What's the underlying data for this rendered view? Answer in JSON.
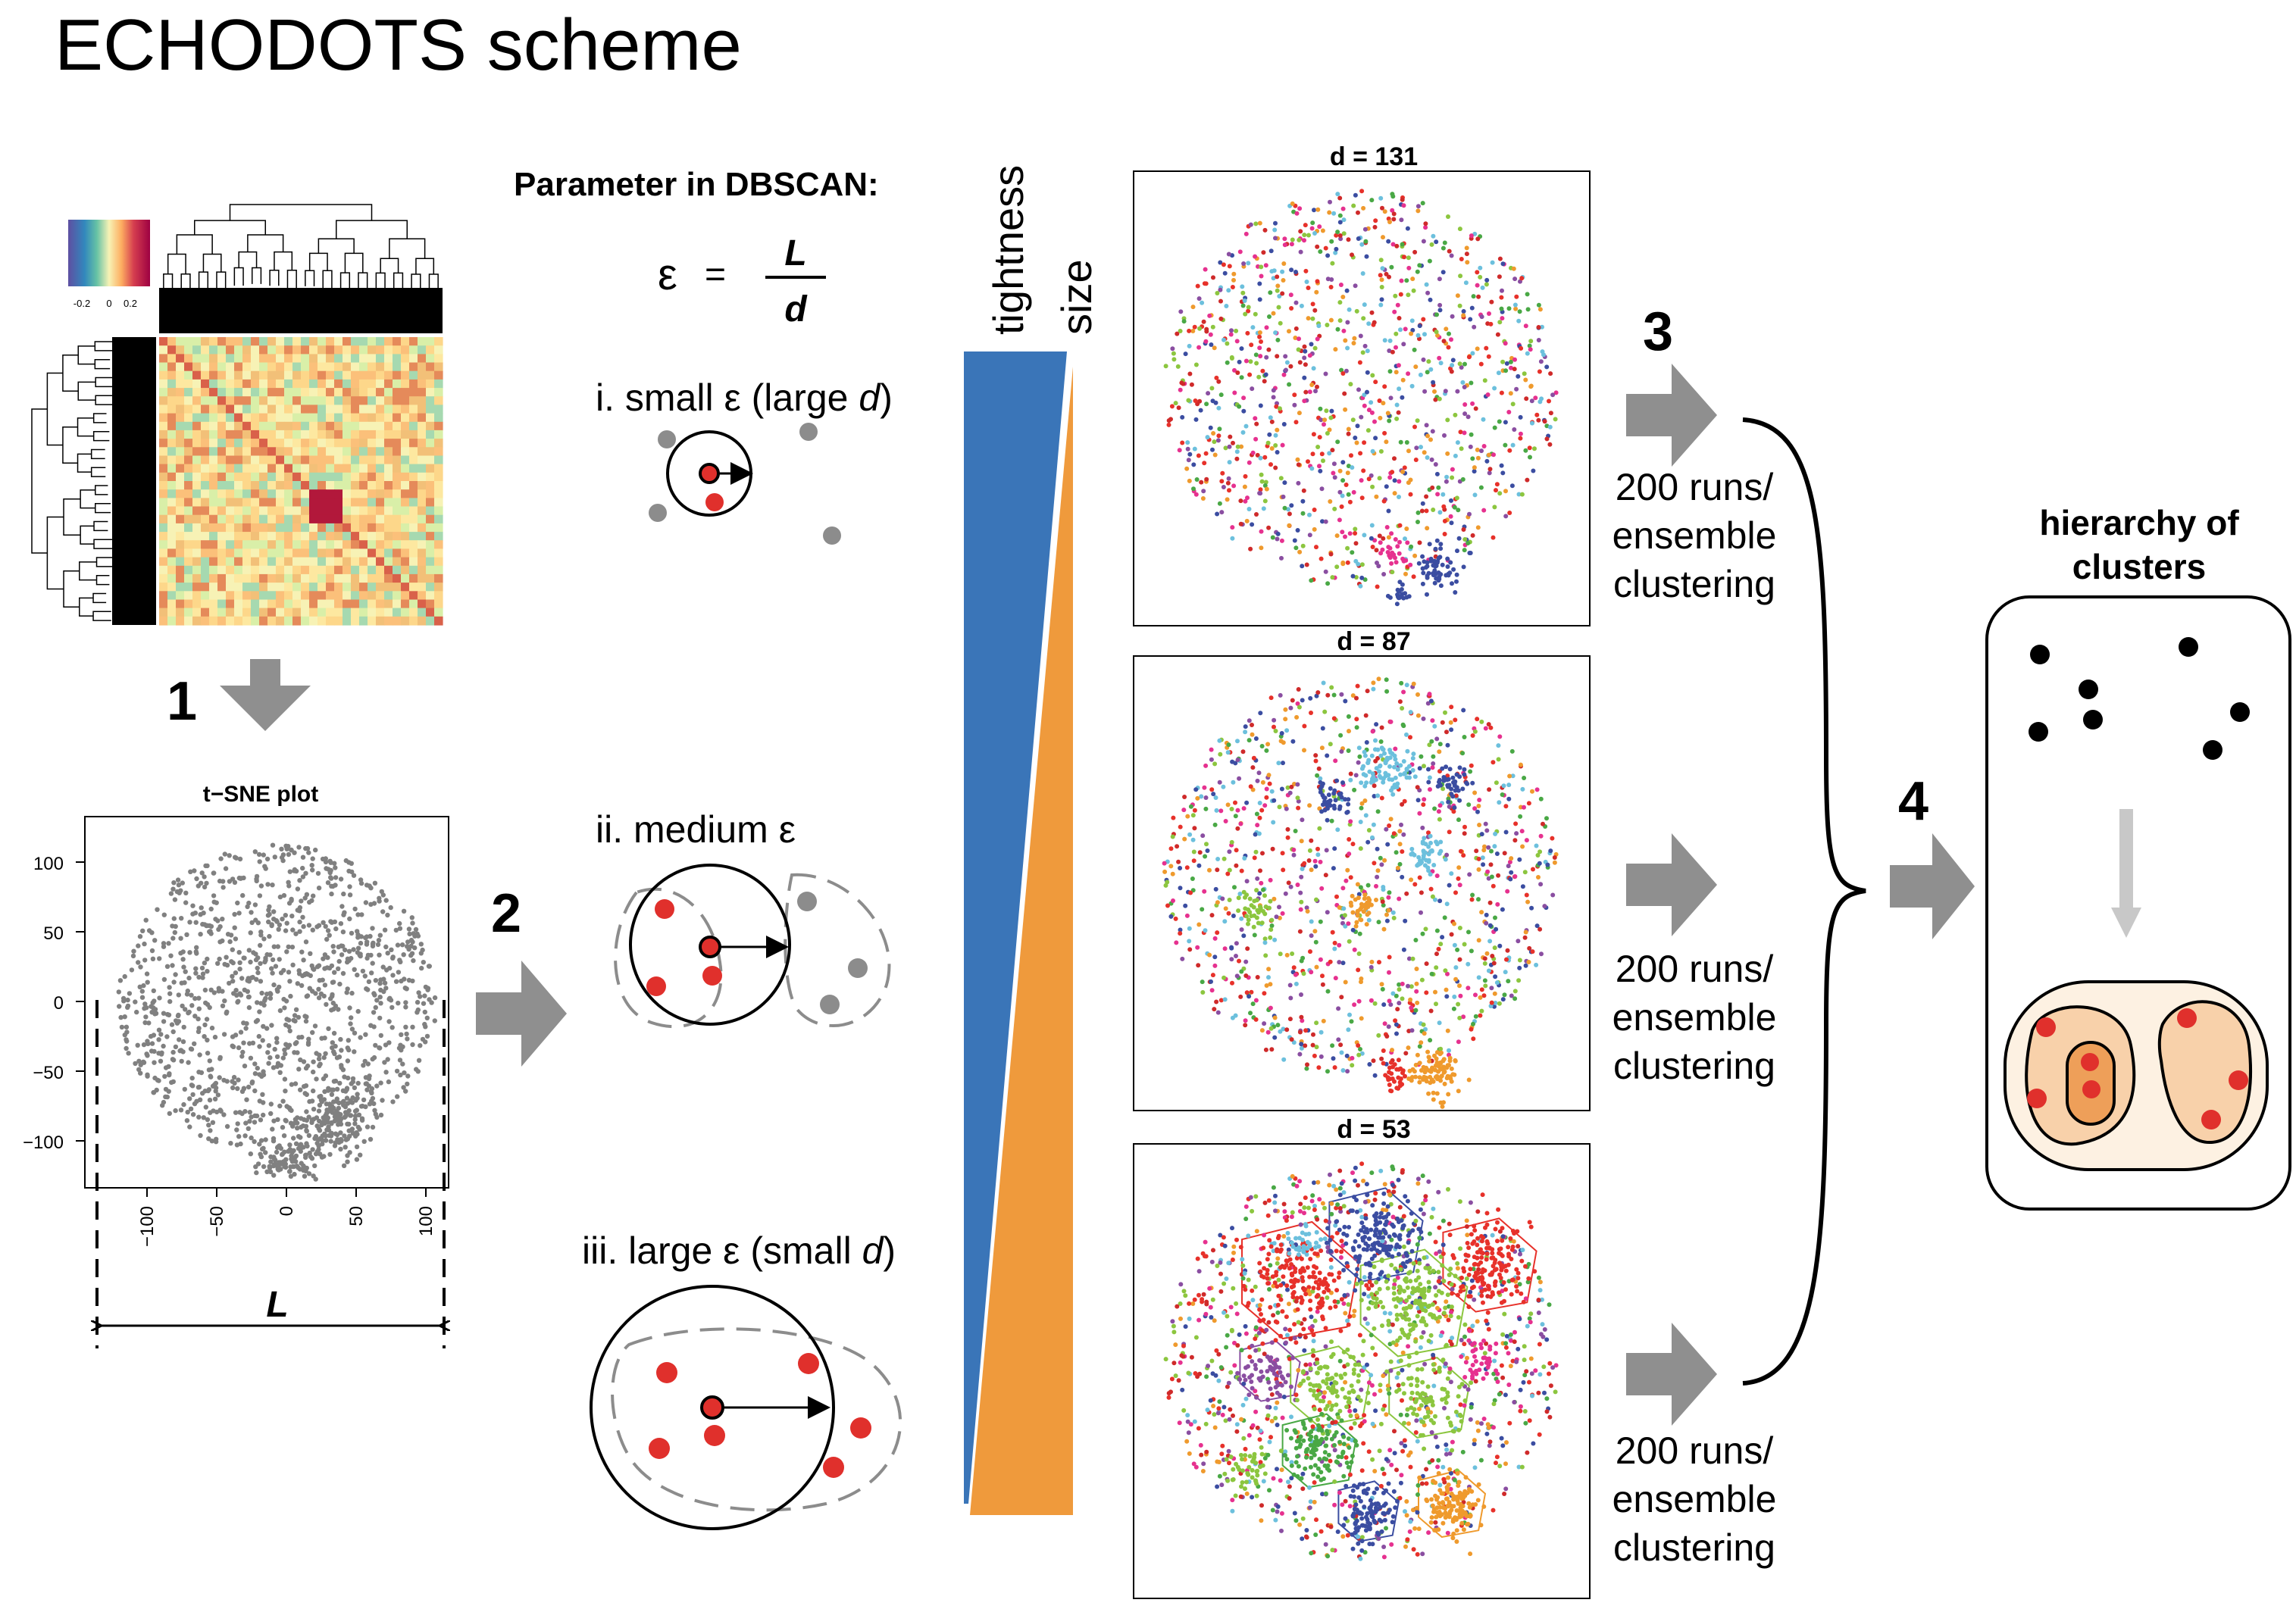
{
  "title": "ECHODOTS scheme",
  "steps": [
    "1",
    "2",
    "3",
    "4"
  ],
  "heatmap": {
    "colorkey_ticks": [
      "-0.2",
      "0",
      "0.2"
    ],
    "colors": {
      "low": "#5e4fa2",
      "mid": "#f7f2b5",
      "high": "#9e0142"
    }
  },
  "tsne": {
    "title": "t−SNE plot",
    "y_ticks": [
      "100",
      "50",
      "0",
      "−50",
      "−100"
    ],
    "x_ticks": [
      "−100",
      "−50",
      "0",
      "50",
      "100"
    ],
    "length_label": "L",
    "point_color": "#808080"
  },
  "dbscan": {
    "parameter_title": "Parameter in DBSCAN:",
    "eps_symbol": "ε",
    "equals": "=",
    "numerator": "L",
    "denominator": "d",
    "cases": [
      {
        "prefix": "i. small ε (large ",
        "italic": "d",
        "suffix": ")"
      },
      {
        "prefix": "ii. medium ε",
        "italic": "",
        "suffix": ""
      },
      {
        "prefix": "iii. large ε (small ",
        "italic": "d",
        "suffix": ")"
      }
    ],
    "core_color": "#e0302c",
    "noise_color": "#8c8c8c"
  },
  "gradient": {
    "labels": [
      "tightness",
      "size"
    ],
    "colors": {
      "tightness": "#3a75b8",
      "size": "#ef9a3c"
    }
  },
  "cluster_panels": [
    {
      "label": "d = 131"
    },
    {
      "label": "d = 87"
    },
    {
      "label": "d = 53"
    }
  ],
  "ensemble": {
    "lines": [
      "200 runs/",
      "ensemble",
      "clustering"
    ]
  },
  "hierarchy": {
    "title_lines": [
      "hierarchy of",
      "clusters"
    ],
    "fill_outer": "#fdf1e2",
    "fill_inner": "#f8d1aa"
  },
  "palette": [
    "#e7312a",
    "#3b4da1",
    "#6cc0dd",
    "#8cc63f",
    "#ef9a2d",
    "#e6318f",
    "#8a4ea1",
    "#49a845",
    "#cf2a2a"
  ]
}
